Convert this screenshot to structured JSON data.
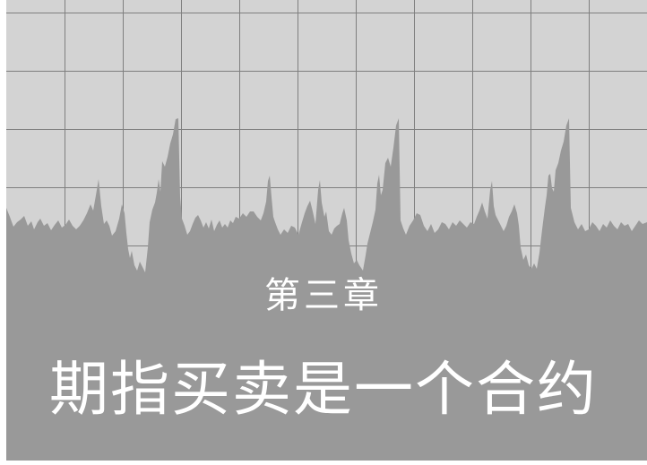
{
  "chapter": {
    "label": "第三章",
    "title": "期指买卖是一个合约"
  },
  "colors": {
    "background_panel": "#d3d3d3",
    "grid_line": "#7f7f7f",
    "price_area_fill": "#999999",
    "text": "#ffffff"
  }
}
